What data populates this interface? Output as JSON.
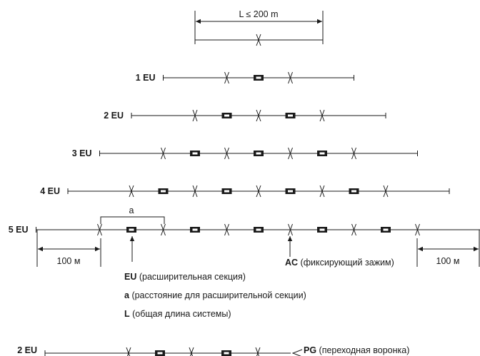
{
  "top_dimension": {
    "label": "L ≤ 200 m"
  },
  "rows": [
    {
      "label": "1 EU",
      "eu_count": 1
    },
    {
      "label": "2 EU",
      "eu_count": 2
    },
    {
      "label": "3 EU",
      "eu_count": 3
    },
    {
      "label": "4 EU",
      "eu_count": 4
    },
    {
      "label": "5 EU",
      "eu_count": 5
    }
  ],
  "spacing_label": "a",
  "offset_left_label": "100 м",
  "offset_right_label": "100 м",
  "ac_annotation": {
    "abbr": "AC",
    "text": "(фиксирующий зажим)"
  },
  "legend": [
    {
      "abbr": "EU",
      "text": "(расширительная секция)"
    },
    {
      "abbr": "a",
      "text": "(расстояние для расширительной секции)"
    },
    {
      "abbr": "L",
      "text": "(общая длина системы)"
    }
  ],
  "bottom_row": {
    "label": "2 EU",
    "pg_annotation": {
      "abbr": "PG",
      "text": "(переходная воронка)"
    }
  }
}
